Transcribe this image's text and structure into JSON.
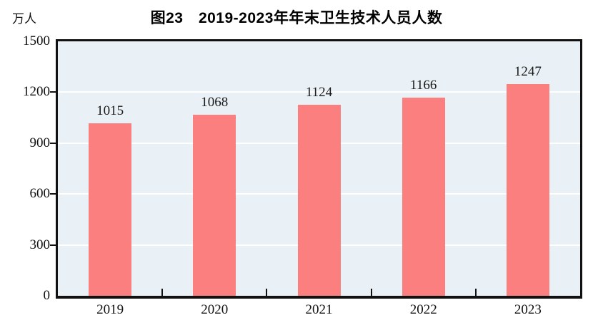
{
  "chart_data": {
    "type": "bar",
    "title": "图23　2019-2023年年末卫生技术人员人数",
    "ylabel_unit": "万人",
    "categories": [
      "2019",
      "2020",
      "2021",
      "2022",
      "2023"
    ],
    "values": [
      1015,
      1068,
      1124,
      1166,
      1247
    ],
    "ylim": [
      0,
      1500
    ],
    "yticks": [
      0,
      300,
      600,
      900,
      1200,
      1500
    ],
    "grid": true,
    "legend": "none",
    "colors": {
      "bar": "#fc7f7f",
      "plot_background": "#e9f1f6",
      "gridline": "#ffffff",
      "axis": "#111111",
      "text": "#1a1a1a"
    }
  }
}
